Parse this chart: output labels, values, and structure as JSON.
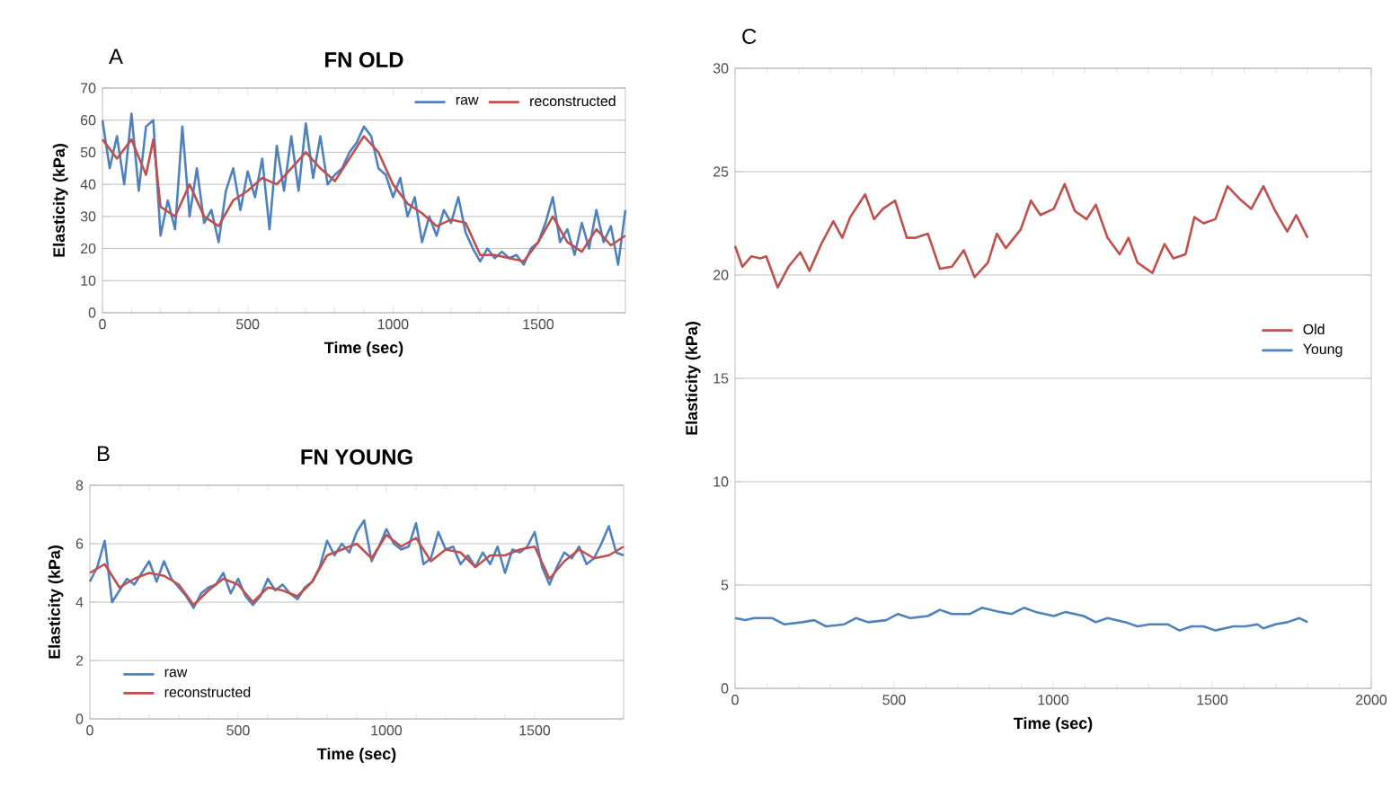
{
  "chart_data": [
    {
      "type": "line",
      "title": "FN OLD",
      "xlabel": "Time (sec)",
      "ylabel": "Elasticity (kPa)",
      "annotations": [
        "A"
      ],
      "xlim": [
        0,
        1800
      ],
      "xticks": [
        0,
        500,
        1000,
        1500
      ],
      "ylim": [
        0,
        70
      ],
      "yticks": [
        0,
        10,
        20,
        30,
        40,
        50,
        60,
        70
      ],
      "grid": "y",
      "legend": "top right",
      "series": [
        {
          "name": "raw",
          "color": "#4f81bd",
          "x": [
            0,
            25,
            50,
            75,
            100,
            125,
            150,
            175,
            200,
            225,
            250,
            275,
            300,
            325,
            350,
            375,
            400,
            425,
            450,
            475,
            500,
            525,
            550,
            575,
            600,
            625,
            650,
            675,
            700,
            725,
            750,
            775,
            800,
            825,
            850,
            875,
            900,
            925,
            950,
            975,
            1000,
            1025,
            1050,
            1075,
            1100,
            1125,
            1150,
            1175,
            1200,
            1225,
            1250,
            1275,
            1300,
            1325,
            1350,
            1375,
            1400,
            1425,
            1450,
            1475,
            1500,
            1525,
            1550,
            1575,
            1600,
            1625,
            1650,
            1675,
            1700,
            1725,
            1750,
            1775,
            1800
          ],
          "values": [
            60,
            45,
            55,
            40,
            62,
            38,
            58,
            60,
            24,
            35,
            26,
            58,
            30,
            45,
            28,
            32,
            22,
            38,
            45,
            32,
            44,
            36,
            48,
            26,
            52,
            38,
            55,
            38,
            59,
            42,
            55,
            40,
            43,
            45,
            50,
            53,
            58,
            55,
            45,
            43,
            36,
            42,
            30,
            36,
            22,
            30,
            24,
            32,
            28,
            36,
            25,
            20,
            16,
            20,
            17,
            19,
            17,
            18,
            15,
            20,
            22,
            28,
            36,
            22,
            26,
            18,
            28,
            20,
            32,
            22,
            27,
            15,
            32
          ]
        },
        {
          "name": "reconstructed",
          "color": "#c0504d",
          "x": [
            0,
            50,
            100,
            150,
            175,
            200,
            250,
            300,
            350,
            400,
            450,
            500,
            550,
            600,
            650,
            700,
            750,
            800,
            850,
            900,
            950,
            1000,
            1050,
            1100,
            1150,
            1200,
            1250,
            1300,
            1350,
            1400,
            1450,
            1500,
            1550,
            1600,
            1650,
            1700,
            1750,
            1800
          ],
          "values": [
            54,
            48,
            54,
            43,
            54,
            33,
            30,
            40,
            30,
            27,
            35,
            38,
            42,
            40,
            45,
            50,
            45,
            41,
            48,
            55,
            50,
            40,
            34,
            31,
            27,
            29,
            28,
            18,
            18,
            17,
            16,
            22,
            30,
            22,
            19,
            26,
            21,
            24
          ]
        }
      ]
    },
    {
      "type": "line",
      "title": "FN YOUNG",
      "xlabel": "Time (sec)",
      "ylabel": "Elasticity (kPa)",
      "annotations": [
        "B"
      ],
      "xlim": [
        0,
        1800
      ],
      "xticks": [
        0,
        500,
        1000,
        1500
      ],
      "ylim": [
        0,
        8
      ],
      "yticks": [
        0,
        2,
        4,
        6,
        8
      ],
      "grid": "y",
      "legend": "bottom left",
      "series": [
        {
          "name": "raw",
          "color": "#4f81bd",
          "x": [
            0,
            25,
            50,
            75,
            100,
            125,
            150,
            175,
            200,
            225,
            250,
            275,
            300,
            325,
            350,
            375,
            400,
            425,
            450,
            475,
            500,
            525,
            550,
            575,
            600,
            625,
            650,
            675,
            700,
            725,
            750,
            775,
            800,
            825,
            850,
            875,
            900,
            925,
            950,
            975,
            1000,
            1025,
            1050,
            1075,
            1100,
            1125,
            1150,
            1175,
            1200,
            1225,
            1250,
            1275,
            1300,
            1325,
            1350,
            1375,
            1400,
            1425,
            1450,
            1475,
            1500,
            1525,
            1550,
            1575,
            1600,
            1625,
            1650,
            1675,
            1700,
            1725,
            1750,
            1775,
            1800
          ],
          "values": [
            4.7,
            5.2,
            6.1,
            4.0,
            4.4,
            4.8,
            4.6,
            5.0,
            5.4,
            4.7,
            5.4,
            4.8,
            4.5,
            4.2,
            3.8,
            4.3,
            4.5,
            4.6,
            5.0,
            4.3,
            4.8,
            4.2,
            3.9,
            4.2,
            4.8,
            4.4,
            4.6,
            4.3,
            4.1,
            4.5,
            4.7,
            5.2,
            6.1,
            5.6,
            6.0,
            5.7,
            6.4,
            6.8,
            5.4,
            5.9,
            6.5,
            6.0,
            5.8,
            5.9,
            6.7,
            5.3,
            5.5,
            6.4,
            5.8,
            5.9,
            5.3,
            5.6,
            5.2,
            5.7,
            5.3,
            5.9,
            5.0,
            5.8,
            5.7,
            5.9,
            6.4,
            5.2,
            4.6,
            5.2,
            5.7,
            5.5,
            5.9,
            5.3,
            5.5,
            6.0,
            6.6,
            5.7,
            5.6
          ]
        },
        {
          "name": "reconstructed",
          "color": "#c0504d",
          "x": [
            0,
            50,
            100,
            150,
            200,
            250,
            300,
            350,
            400,
            450,
            500,
            550,
            600,
            650,
            700,
            750,
            800,
            850,
            900,
            950,
            1000,
            1050,
            1100,
            1150,
            1200,
            1250,
            1300,
            1350,
            1400,
            1450,
            1500,
            1550,
            1600,
            1650,
            1700,
            1750,
            1800
          ],
          "values": [
            5.0,
            5.3,
            4.5,
            4.8,
            5.0,
            4.9,
            4.6,
            3.9,
            4.4,
            4.8,
            4.6,
            4.0,
            4.5,
            4.4,
            4.2,
            4.7,
            5.6,
            5.8,
            6.0,
            5.5,
            6.3,
            5.9,
            6.2,
            5.4,
            5.8,
            5.7,
            5.2,
            5.6,
            5.6,
            5.8,
            5.9,
            4.8,
            5.4,
            5.8,
            5.5,
            5.6,
            5.9
          ]
        }
      ]
    },
    {
      "type": "line",
      "xlabel": "Time (sec)",
      "ylabel": "Elasticity (kPa)",
      "annotations": [
        "C"
      ],
      "xlim": [
        0,
        2000
      ],
      "xticks": [
        0,
        500,
        1000,
        1500,
        2000
      ],
      "ylim": [
        0,
        30
      ],
      "yticks": [
        0,
        5,
        10,
        15,
        20,
        25,
        30
      ],
      "grid": "y",
      "legend": "right",
      "series": [
        {
          "name": "Old",
          "color": "#c0504d",
          "x": [
            0,
            23,
            51,
            79,
            98,
            134,
            168,
            205,
            234,
            271,
            309,
            337,
            362,
            409,
            437,
            465,
            503,
            540,
            568,
            606,
            644,
            682,
            719,
            753,
            795,
            823,
            851,
            898,
            930,
            960,
            1002,
            1036,
            1068,
            1105,
            1134,
            1171,
            1209,
            1237,
            1265,
            1312,
            1350,
            1378,
            1416,
            1444,
            1473,
            1510,
            1548,
            1585,
            1623,
            1661,
            1698,
            1736,
            1764,
            1800
          ],
          "values": [
            21.4,
            20.4,
            20.9,
            20.8,
            20.9,
            19.4,
            20.4,
            21.1,
            20.2,
            21.5,
            22.6,
            21.8,
            22.8,
            23.9,
            22.7,
            23.2,
            23.6,
            21.8,
            21.8,
            22.0,
            20.3,
            20.4,
            21.2,
            19.9,
            20.6,
            22.0,
            21.3,
            22.2,
            23.6,
            22.9,
            23.2,
            24.4,
            23.1,
            22.7,
            23.4,
            21.8,
            21.0,
            21.8,
            20.6,
            20.1,
            21.5,
            20.8,
            21.0,
            22.8,
            22.5,
            22.7,
            24.3,
            23.7,
            23.2,
            24.3,
            23.1,
            22.1,
            22.9,
            21.8
          ]
        },
        {
          "name": "Young",
          "color": "#4f81bd",
          "x": [
            0,
            32,
            60,
            117,
            154,
            211,
            249,
            286,
            343,
            380,
            418,
            475,
            512,
            550,
            606,
            644,
            682,
            738,
            776,
            832,
            870,
            908,
            945,
            1002,
            1039,
            1096,
            1134,
            1171,
            1228,
            1265,
            1303,
            1360,
            1397,
            1435,
            1473,
            1510,
            1567,
            1604,
            1642,
            1661,
            1698,
            1736,
            1774,
            1800
          ],
          "values": [
            3.4,
            3.3,
            3.4,
            3.4,
            3.1,
            3.2,
            3.3,
            3.0,
            3.1,
            3.4,
            3.2,
            3.3,
            3.6,
            3.4,
            3.5,
            3.8,
            3.6,
            3.6,
            3.9,
            3.7,
            3.6,
            3.9,
            3.7,
            3.5,
            3.7,
            3.5,
            3.2,
            3.4,
            3.2,
            3.0,
            3.1,
            3.1,
            2.8,
            3.0,
            3.0,
            2.8,
            3.0,
            3.0,
            3.1,
            2.9,
            3.1,
            3.2,
            3.4,
            3.2
          ]
        }
      ]
    }
  ]
}
